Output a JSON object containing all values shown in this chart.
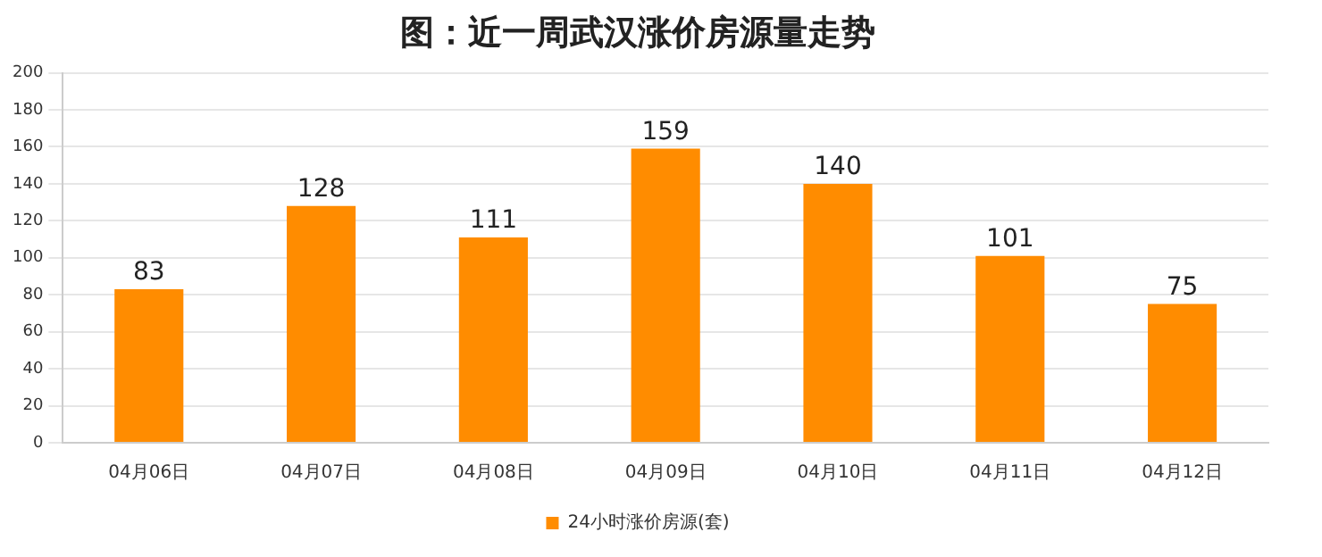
{
  "chart_data": {
    "type": "bar",
    "title": "图：近一周武汉涨价房源量走势",
    "categories": [
      "04月06日",
      "04月07日",
      "04月08日",
      "04月09日",
      "04月10日",
      "04月11日",
      "04月12日"
    ],
    "series": [
      {
        "name": "24小时涨价房源(套)",
        "color": "#ff8c00",
        "values": [
          83,
          128,
          111,
          159,
          140,
          101,
          75
        ]
      }
    ],
    "ylim": [
      0,
      200
    ],
    "yticks": [
      0,
      20,
      40,
      60,
      80,
      100,
      120,
      140,
      160,
      180,
      200
    ],
    "grid": "y",
    "legend": "bottom",
    "data_labels": true
  }
}
